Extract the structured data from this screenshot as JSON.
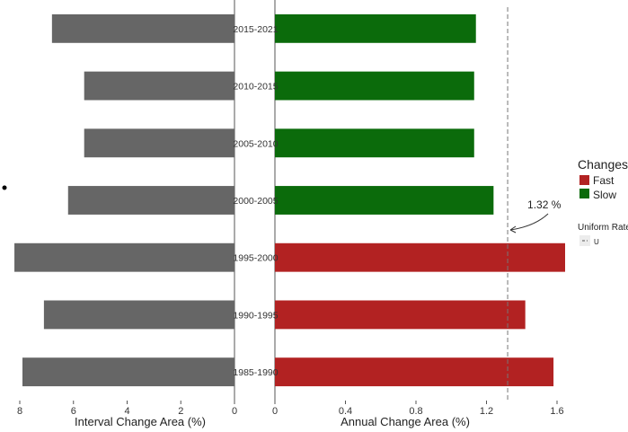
{
  "chart_data": [
    {
      "type": "bar",
      "orientation": "horizontal",
      "reversed_x": true,
      "categories": [
        "2015-2021",
        "2010-2015",
        "2005-2010",
        "2000-2005",
        "1995-2000",
        "1990-1995",
        "1985-1990"
      ],
      "values": [
        6.8,
        5.6,
        5.6,
        6.2,
        8.2,
        7.1,
        7.9
      ],
      "xlabel": "Interval Change Area (%)",
      "xlim": [
        0,
        8
      ],
      "xticks": [
        "8",
        "6",
        "4",
        "2",
        "0"
      ],
      "bar_color": "#666666"
    },
    {
      "type": "bar",
      "orientation": "horizontal",
      "categories": [
        "2015-2021",
        "2010-2015",
        "2005-2010",
        "2000-2005",
        "1995-2000",
        "1990-1995",
        "1985-1990"
      ],
      "values": [
        1.14,
        1.13,
        1.13,
        1.24,
        1.65,
        1.42,
        1.58
      ],
      "groups": [
        "Slow",
        "Slow",
        "Slow",
        "Slow",
        "Fast",
        "Fast",
        "Fast"
      ],
      "xlabel": "Annual Change Area (%)",
      "xlim": [
        0,
        1.6
      ],
      "xticks": [
        "0",
        "0.4",
        "0.8",
        "1.2",
        "1.6"
      ],
      "reference_line": {
        "value": 1.32,
        "label": "1.32 %",
        "style": "dashed"
      },
      "colors": {
        "Fast": "#b22222",
        "Slow": "#0b6b0b"
      },
      "legend": {
        "title": "Changes",
        "items": [
          "Fast",
          "Slow"
        ],
        "line_title": "Uniform Rate",
        "line_item": "U",
        "placement": "right"
      }
    }
  ]
}
